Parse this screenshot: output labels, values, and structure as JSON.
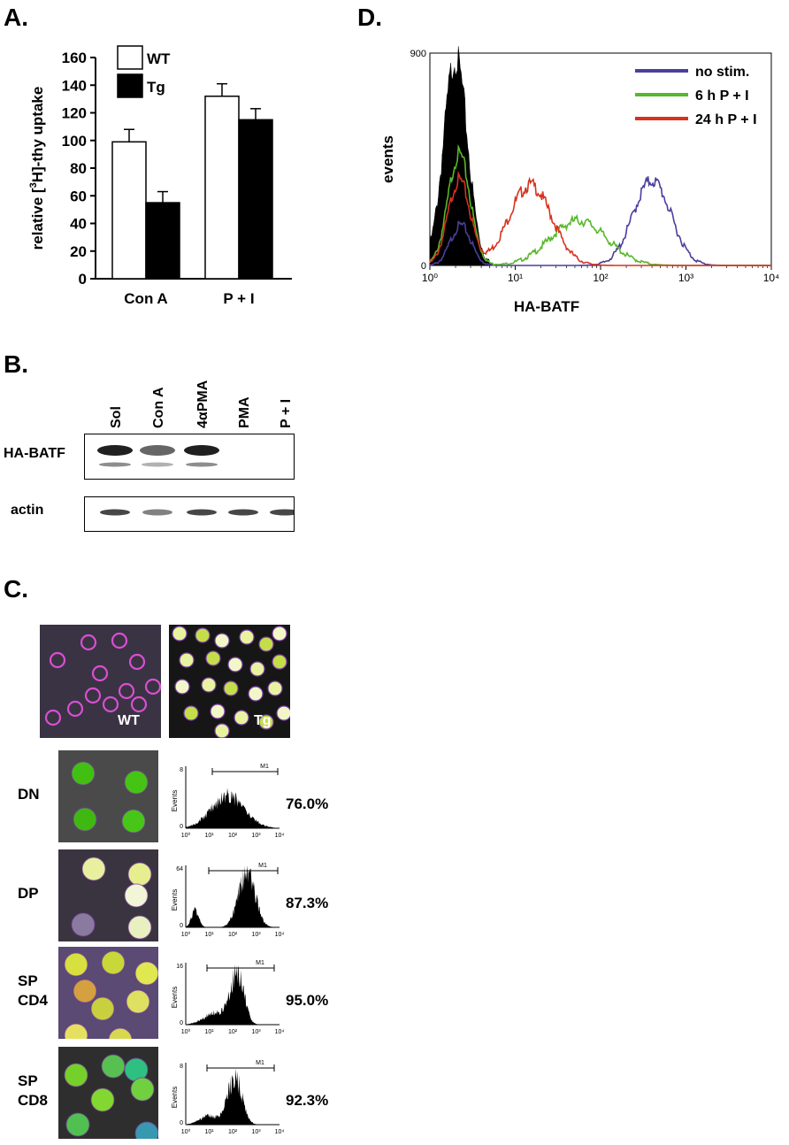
{
  "panels": {
    "a": "A.",
    "b": "B.",
    "c": "C.",
    "d": "D."
  },
  "panel_a": {
    "chart_data": {
      "type": "bar",
      "categories": [
        "Con A",
        "P + I"
      ],
      "series": [
        {
          "name": "WT",
          "values": [
            99,
            132
          ],
          "errors": [
            9,
            9
          ],
          "color": "#ffffff"
        },
        {
          "name": "Tg",
          "values": [
            55,
            115
          ],
          "errors": [
            8,
            8
          ],
          "color": "#000000"
        }
      ],
      "ylabel_pre": "relative [",
      "ylabel_sup": "3",
      "ylabel_post": "H]-thy uptake",
      "yticks": [
        "0",
        "20",
        "40",
        "60",
        "80",
        "100",
        "120",
        "140",
        "160"
      ],
      "ylim": [
        0,
        160
      ],
      "legend": "top-left"
    }
  },
  "panel_b": {
    "lanes": [
      "Sol",
      "Con A",
      "4αPMA",
      "PMA",
      "P + I"
    ],
    "rows": [
      "HA-BATF",
      "actin"
    ],
    "band_intensity": {
      "HA-BATF": [
        0.95,
        0.65,
        0.95,
        0,
        0
      ],
      "actin": [
        0.8,
        0.55,
        0.8,
        0.8,
        0.8
      ]
    }
  },
  "panel_c": {
    "micrograph_labels": [
      "WT",
      "Tg"
    ],
    "rows": [
      {
        "label_lines": [
          "DN"
        ],
        "percent": "76.0%",
        "ymax": "8"
      },
      {
        "label_lines": [
          "DP"
        ],
        "percent": "87.3%",
        "ymax": "64"
      },
      {
        "label_lines": [
          "SP",
          "CD4"
        ],
        "percent": "95.0%",
        "ymax": "16"
      },
      {
        "label_lines": [
          "SP",
          "CD8"
        ],
        "percent": "92.3%",
        "ymax": "8"
      }
    ],
    "hist_ylabel": "Events",
    "gate_label": "M1",
    "hist_xticks": [
      "10⁰",
      "10¹",
      "10²",
      "10³",
      "10⁴"
    ]
  },
  "panel_d": {
    "chart_data": {
      "type": "histogram",
      "xlabel": "HA-BATF",
      "ylabel": "events",
      "xscale": "log",
      "xlim": [
        1,
        10000
      ],
      "ylim": [
        0,
        900
      ],
      "yticks": [
        "0",
        "900"
      ],
      "xticks": [
        "10⁰",
        "10¹",
        "10²",
        "10³",
        "10⁴"
      ],
      "legend": "top-right",
      "filled_reference": {
        "fill": "#000000",
        "peak_x": 2.0,
        "peak_y": 880
      },
      "series": [
        {
          "name": "no stim.",
          "color": "#4a3f9c",
          "peaks": [
            {
              "x": 2.3,
              "y": 170
            },
            {
              "x": 400,
              "y": 360
            }
          ]
        },
        {
          "name": "6 h P + I",
          "color": "#58b82b",
          "peaks": [
            {
              "x": 2.2,
              "y": 470
            },
            {
              "x": 55,
              "y": 190
            }
          ]
        },
        {
          "name": "24 h P + I",
          "color": "#d8321e",
          "peaks": [
            {
              "x": 2.2,
              "y": 360
            },
            {
              "x": 15,
              "y": 340
            }
          ]
        }
      ]
    }
  }
}
